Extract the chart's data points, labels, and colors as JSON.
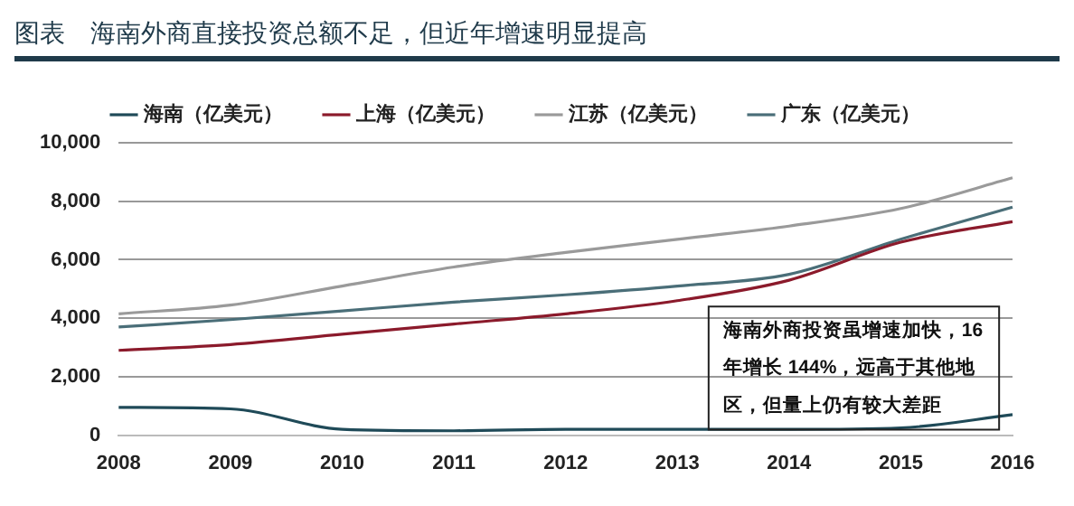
{
  "chart_data": {
    "type": "line",
    "title": "图表　海南外商直接投资总额不足，但近年增速明显提高",
    "categories": [
      "2008",
      "2009",
      "2010",
      "2011",
      "2012",
      "2013",
      "2014",
      "2015",
      "2016"
    ],
    "series": [
      {
        "name": "海南（亿美元）",
        "color": "#1f4a58",
        "values": [
          950,
          900,
          200,
          150,
          200,
          200,
          200,
          250,
          700
        ]
      },
      {
        "name": "上海（亿美元）",
        "color": "#8b1a2b",
        "values": [
          2900,
          3100,
          3450,
          3800,
          4150,
          4600,
          5300,
          6600,
          7300
        ]
      },
      {
        "name": "江苏（亿美元）",
        "color": "#9a9a9a",
        "values": [
          4150,
          4450,
          5100,
          5750,
          6250,
          6700,
          7150,
          7750,
          8800
        ]
      },
      {
        "name": "广东（亿美元）",
        "color": "#4a6e78",
        "values": [
          3700,
          3950,
          4250,
          4550,
          4800,
          5100,
          5500,
          6700,
          7800
        ]
      }
    ],
    "ylim": [
      0,
      10000
    ],
    "yticks": [
      0,
      {
        "value": 2000,
        "label": "2,000"
      },
      {
        "value": 4000,
        "label": "4,000"
      },
      {
        "value": 6000,
        "label": "6,000"
      },
      {
        "value": 8000,
        "label": "8,000"
      },
      {
        "value": 10000,
        "label": "10,000"
      }
    ],
    "grid": "y",
    "legend": "top",
    "marker": "none",
    "line_style": "solid",
    "annotations": [
      "海南外商投资虽增速加快，16 年增长 144%，远高于其他地区，但量上仍有较大差距"
    ]
  }
}
